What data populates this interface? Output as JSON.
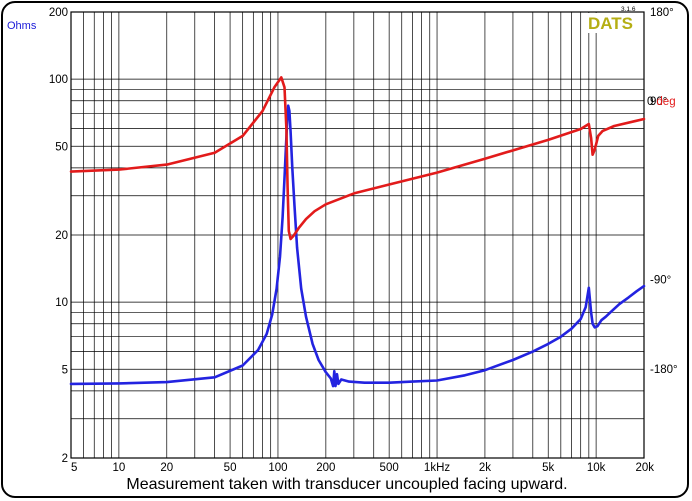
{
  "caption": "Measurement taken with transducer uncoupled facing upward.",
  "brand": "DATS",
  "version": "3.1.6",
  "colors": {
    "impedance": "#2323e0",
    "phase": "#e21b1b",
    "brand": "#b5ae14",
    "grid": "#000000"
  },
  "chart_data": {
    "type": "line",
    "xscale": "log",
    "yscale": "log",
    "xlim": [
      5,
      20000
    ],
    "ylim": [
      2,
      200
    ],
    "y2lim": [
      -270,
      180
    ],
    "grid": true,
    "ylabel": "Ohms",
    "y2label_value": "0",
    "y2label_unit": "deg",
    "xticks": [
      {
        "v": 5,
        "label": "5"
      },
      {
        "v": 10,
        "label": "10"
      },
      {
        "v": 20,
        "label": "20"
      },
      {
        "v": 50,
        "label": "50"
      },
      {
        "v": 100,
        "label": "100"
      },
      {
        "v": 200,
        "label": "200"
      },
      {
        "v": 500,
        "label": "500"
      },
      {
        "v": 1000,
        "label": "1kHz"
      },
      {
        "v": 2000,
        "label": "2k"
      },
      {
        "v": 5000,
        "label": "5k"
      },
      {
        "v": 10000,
        "label": "10k"
      },
      {
        "v": 20000,
        "label": "20k"
      }
    ],
    "yticks": [
      {
        "v": 200,
        "label": "200"
      },
      {
        "v": 100,
        "label": "100"
      },
      {
        "v": 50,
        "label": "50"
      },
      {
        "v": 20,
        "label": "20"
      },
      {
        "v": 10,
        "label": "10"
      },
      {
        "v": 5,
        "label": "5"
      },
      {
        "v": 2,
        "label": "2"
      }
    ],
    "y2ticks": [
      {
        "v": 180,
        "label": "180°"
      },
      {
        "v": 90,
        "label": "90°"
      },
      {
        "v": -90,
        "label": "-90°"
      },
      {
        "v": -180,
        "label": "-180°"
      }
    ],
    "series": [
      {
        "key": "impedance",
        "axis": "y",
        "x": [
          5,
          10,
          20,
          40,
          60,
          75,
          85,
          92,
          98,
          103,
          107,
          110,
          113,
          115,
          116,
          118,
          120,
          123,
          127,
          132,
          140,
          150,
          165,
          180,
          200,
          215,
          222,
          226,
          230,
          235,
          240,
          250,
          280,
          350,
          500,
          700,
          1000,
          1500,
          2000,
          3000,
          4000,
          5000,
          6000,
          7000,
          8000,
          8600,
          9000,
          9300,
          9500,
          9800,
          10200,
          10800,
          11500,
          12500,
          14000,
          16000,
          18000,
          20000
        ],
        "y": [
          4.3,
          4.32,
          4.38,
          4.6,
          5.2,
          6.1,
          7.2,
          8.8,
          11.5,
          16,
          24,
          36,
          55,
          70,
          76,
          72,
          58,
          40,
          27,
          17.5,
          11.5,
          8.6,
          6.5,
          5.5,
          4.85,
          4.55,
          4.2,
          4.9,
          4.2,
          4.75,
          4.3,
          4.5,
          4.4,
          4.35,
          4.35,
          4.4,
          4.45,
          4.7,
          4.95,
          5.5,
          6.0,
          6.5,
          7.0,
          7.6,
          8.4,
          9.5,
          11.6,
          9.0,
          8.0,
          7.7,
          7.8,
          8.3,
          8.6,
          9.1,
          9.8,
          10.5,
          11.2,
          11.8
        ]
      },
      {
        "key": "phase",
        "axis": "y2",
        "x": [
          5,
          10,
          20,
          40,
          60,
          80,
          95,
          105,
          110,
          113,
          115,
          117,
          120,
          125,
          135,
          150,
          170,
          200,
          250,
          300,
          500,
          1000,
          2000,
          5000,
          8000,
          9000,
          9300,
          9500,
          9800,
          10300,
          11000,
          13000,
          20000
        ],
        "y": [
          19,
          21,
          26,
          38,
          55,
          80,
          104,
          114,
          104,
          62,
          3,
          -41,
          -49,
          -46,
          -38,
          -29,
          -21,
          -14,
          -8,
          -3,
          6,
          18,
          32,
          51,
          62,
          67,
          53,
          36,
          41,
          55,
          60,
          65,
          72
        ]
      }
    ]
  }
}
